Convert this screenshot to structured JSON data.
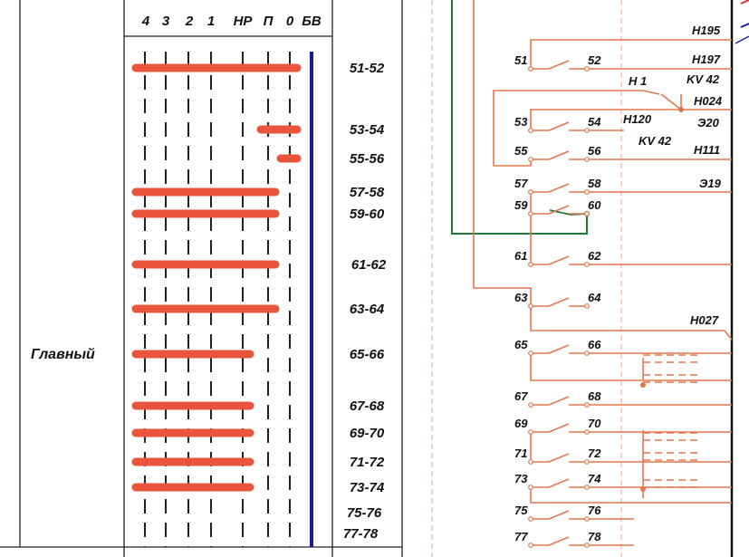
{
  "diagram": {
    "mode_label": "Главный",
    "positions": [
      "4",
      "3",
      "2",
      "1",
      "НР",
      "П",
      "0",
      "БВ"
    ],
    "contact_pairs": [
      "51-52",
      "53-54",
      "55-56",
      "57-58",
      "59-60",
      "61-62",
      "63-64",
      "65-66",
      "67-68",
      "69-70",
      "71-72",
      "73-74",
      "75-76",
      "77-78"
    ],
    "closure_table": [
      {
        "pair": "51-52",
        "from": "4",
        "to": "0"
      },
      {
        "pair": "53-54",
        "from": "П",
        "to": "0"
      },
      {
        "pair": "55-56",
        "from": "0",
        "to": "0"
      },
      {
        "pair": "57-58",
        "from": "4",
        "to": "П"
      },
      {
        "pair": "59-60",
        "from": "4",
        "to": "П"
      },
      {
        "pair": "61-62",
        "from": "4",
        "to": "П"
      },
      {
        "pair": "63-64",
        "from": "4",
        "to": "П"
      },
      {
        "pair": "65-66",
        "from": "4",
        "to": "НР"
      },
      {
        "pair": "67-68",
        "from": "4",
        "to": "НР"
      },
      {
        "pair": "69-70",
        "from": "4",
        "to": "НР"
      },
      {
        "pair": "71-72",
        "from": "4",
        "to": "НР"
      },
      {
        "pair": "73-74",
        "from": "4",
        "to": "НР"
      }
    ],
    "contact_numbers_left": [
      "51",
      "53",
      "55",
      "57",
      "59",
      "61",
      "63",
      "65",
      "67",
      "69",
      "71",
      "73",
      "75",
      "77"
    ],
    "contact_numbers_right": [
      "52",
      "54",
      "56",
      "58",
      "60",
      "62",
      "64",
      "66",
      "68",
      "70",
      "72",
      "74",
      "76",
      "78"
    ],
    "wire_labels": [
      "Н195",
      "Н197",
      "KV 42",
      "Н 1",
      "Н024",
      "Н120",
      "Э20",
      "KV 42",
      "Н111",
      "Э19",
      "Н027"
    ],
    "colors": {
      "closure_bar": "#e8553a",
      "bv_line": "#1a1a9c",
      "wire": "#e2764e",
      "green_wire": "#1f7a38",
      "grid": "#222222",
      "dash_divider": "#f0a080"
    }
  }
}
